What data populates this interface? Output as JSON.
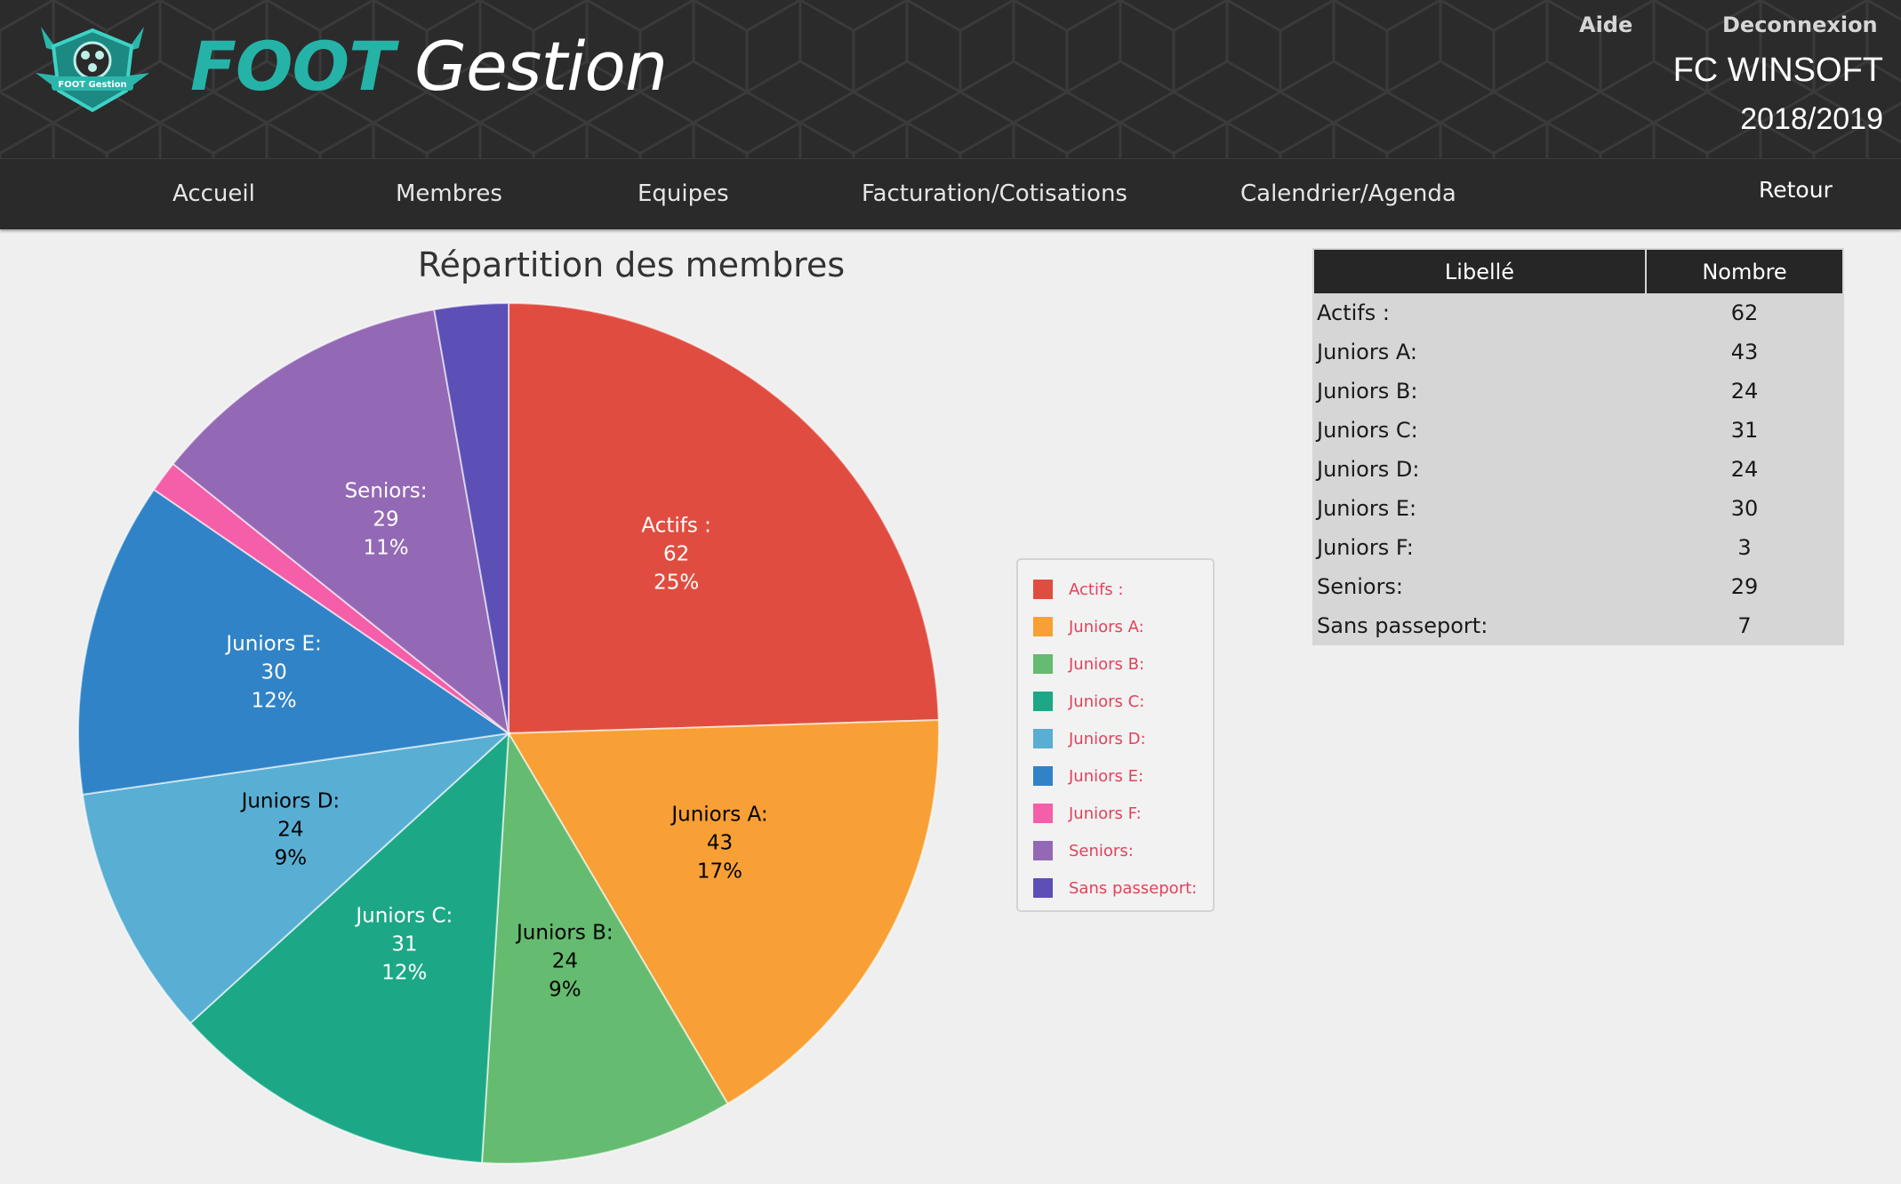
{
  "header": {
    "brand_foot": "FOOT",
    "brand_gestion": "Gestion",
    "logo_text": "FOOT Gestion",
    "help_label": "Aide",
    "logout_label": "Deconnexion",
    "club_name": "FC WINSOFT",
    "season": "2018/2019"
  },
  "nav": {
    "items": [
      "Accueil",
      "Membres",
      "Equipes",
      "Facturation/Cotisations",
      "Calendrier/Agenda"
    ],
    "back_label": "Retour"
  },
  "chart_data": {
    "type": "pie",
    "title": "Répartition des membres",
    "categories": [
      "Actifs :",
      "Juniors A:",
      "Juniors B:",
      "Juniors C:",
      "Juniors D:",
      "Juniors E:",
      "Juniors F:",
      "Seniors:",
      "Sans passeport:"
    ],
    "values": [
      62,
      43,
      24,
      31,
      24,
      30,
      3,
      29,
      7
    ],
    "colors": [
      "#e04d40",
      "#f8a035",
      "#65bb6f",
      "#1ca886",
      "#59aed3",
      "#3083c7",
      "#f55ea8",
      "#9369b5",
      "#5c4fb6"
    ],
    "label_colors": [
      "#ffffff",
      "#000000",
      "#000000",
      "#ffffff",
      "#000000",
      "#ffffff",
      "#ffffff",
      "#ffffff",
      "#ffffff"
    ],
    "legend": "right"
  },
  "table": {
    "headers": [
      "Libellé",
      "Nombre"
    ],
    "rows": [
      {
        "label": "Actifs :",
        "value": "62"
      },
      {
        "label": "Juniors A:",
        "value": "43"
      },
      {
        "label": "Juniors B:",
        "value": "24"
      },
      {
        "label": "Juniors C:",
        "value": "31"
      },
      {
        "label": "Juniors D:",
        "value": "24"
      },
      {
        "label": "Juniors E:",
        "value": "30"
      },
      {
        "label": "Juniors F:",
        "value": "3"
      },
      {
        "label": "Seniors:",
        "value": "29"
      },
      {
        "label": "Sans passeport:",
        "value": "7"
      }
    ]
  }
}
